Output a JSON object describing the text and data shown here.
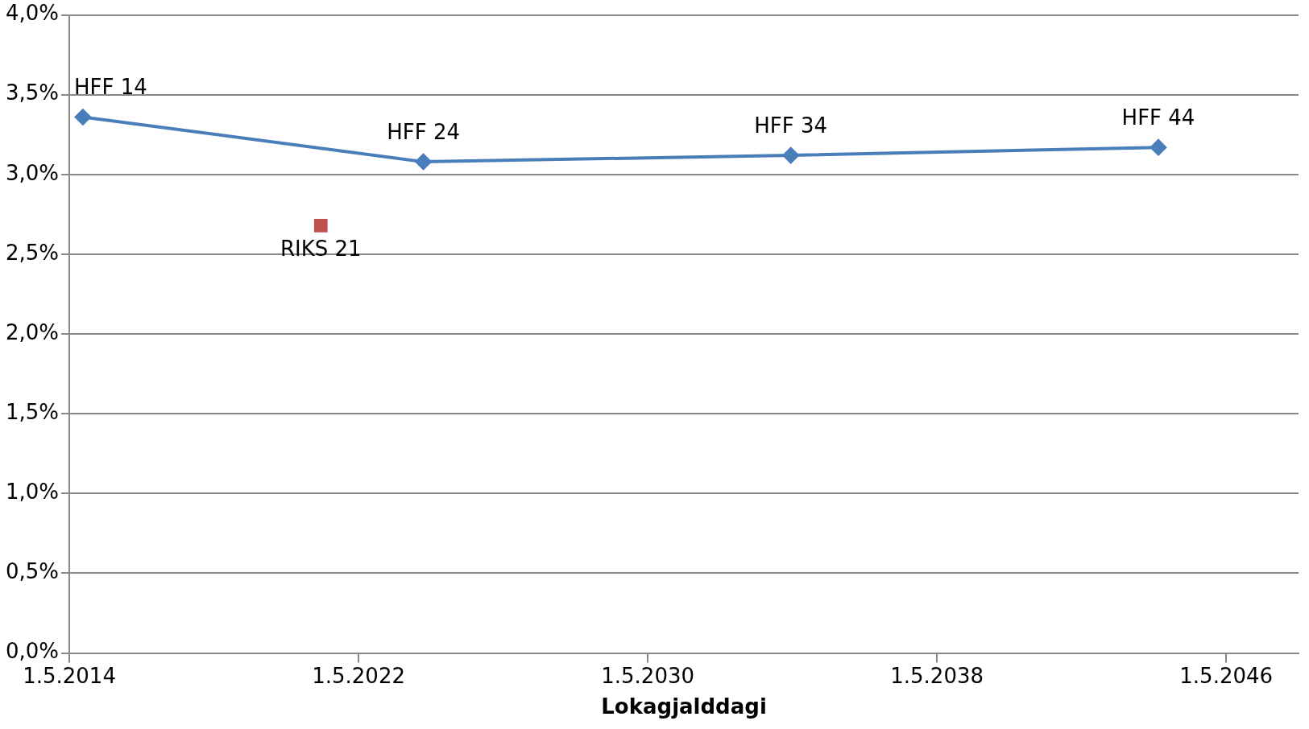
{
  "chart_data": {
    "type": "line",
    "xlabel": "Lokagjalddagi",
    "xlim": [
      "2014-05-01",
      "2048-05-01"
    ],
    "xticks": [
      {
        "value": "2014-05-01",
        "label": "1.5.2014"
      },
      {
        "value": "2022-05-01",
        "label": "1.5.2022"
      },
      {
        "value": "2030-05-01",
        "label": "1.5.2030"
      },
      {
        "value": "2038-05-01",
        "label": "1.5.2038"
      },
      {
        "value": "2046-05-01",
        "label": "1.5.2046"
      }
    ],
    "ylim": [
      0,
      4
    ],
    "yticks": [
      {
        "value": 0,
        "label": "0,0%"
      },
      {
        "value": 0.5,
        "label": "0,5%"
      },
      {
        "value": 1,
        "label": "1,0%"
      },
      {
        "value": 1.5,
        "label": "1,5%"
      },
      {
        "value": 2,
        "label": "2,0%"
      },
      {
        "value": 2.5,
        "label": "2,5%"
      },
      {
        "value": 3,
        "label": "3,0%"
      },
      {
        "value": 3.5,
        "label": "3,5%"
      },
      {
        "value": 4,
        "label": "4,0%"
      }
    ],
    "grid": "y",
    "legend": false,
    "series": [
      {
        "color": "#4a7ebb",
        "marker": "diamond",
        "x": [
          "2014-09-15",
          "2024-02-15",
          "2034-04-15",
          "2044-06-15"
        ],
        "values": [
          3.36,
          3.08,
          3.12,
          3.17
        ]
      },
      {
        "type": "scatter",
        "color": "#c0504d",
        "marker": "square",
        "x": [
          "2021-04-15"
        ],
        "values": [
          2.68
        ]
      }
    ],
    "annotations": [
      {
        "text": "HFF 14",
        "x": "2014-09-15",
        "y": 3.36
      },
      {
        "text": "HFF 24",
        "x": "2024-02-15",
        "y": 3.08
      },
      {
        "text": "HFF 34",
        "x": "2034-04-15",
        "y": 3.12
      },
      {
        "text": "HFF 44",
        "x": "2044-06-15",
        "y": 3.17
      },
      {
        "text": "RIKS 21",
        "x": "2021-04-15",
        "y": 2.68
      }
    ]
  }
}
